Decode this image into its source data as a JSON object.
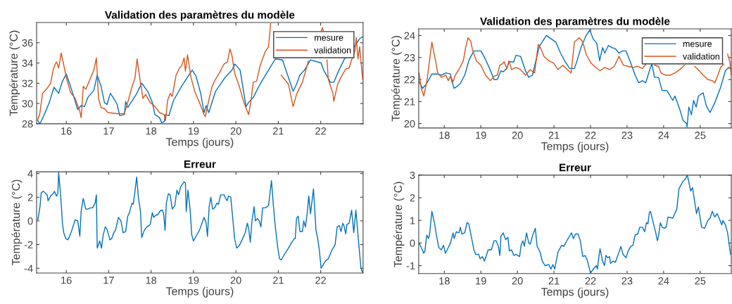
{
  "chart_data": [
    {
      "type": "line",
      "title": "Validation des paramètres du modèle",
      "xlabel": "Temps (jours)",
      "ylabel": "Température (°C)",
      "xlim": [
        15.3,
        23
      ],
      "xticks": [
        16,
        17,
        18,
        19,
        20,
        21,
        22
      ],
      "ylim": [
        28,
        38
      ],
      "yticks": [
        28,
        30,
        32,
        34,
        36
      ],
      "legend": "top right",
      "series": [
        {
          "name": "mesure",
          "color": "#0072bd",
          "x": [
            15.33,
            15.38,
            15.46,
            15.6,
            15.71,
            15.82,
            15.91,
            16.0,
            16.1,
            16.27,
            16.35,
            16.43,
            16.51,
            16.65,
            16.73,
            16.82,
            16.9,
            16.96,
            17.04,
            17.12,
            17.2,
            17.26,
            17.37,
            17.4,
            17.45,
            17.65,
            17.78,
            17.92,
            18.03,
            18.09,
            18.2,
            18.25,
            18.31,
            18.34,
            18.42,
            18.53,
            18.72,
            18.86,
            18.97,
            19.06,
            19.17,
            19.25,
            19.3,
            19.36,
            19.52,
            19.75,
            19.91,
            19.97,
            20.02,
            20.1,
            20.24,
            20.3,
            20.41,
            20.57,
            20.8,
            20.93,
            21.1,
            21.35,
            21.43,
            21.51,
            21.62,
            21.76,
            22.01,
            22.07,
            22.23,
            22.31,
            22.4,
            22.56,
            22.81,
            22.84,
            22.92,
            22.99
          ],
          "values": [
            28.3,
            28.0,
            28.7,
            30.1,
            31.6,
            31.0,
            32.2,
            32.9,
            31.7,
            29.4,
            29.8,
            29.7,
            30.6,
            31.3,
            32.8,
            31.7,
            30.1,
            29.9,
            31.0,
            30.5,
            29.9,
            28.8,
            28.9,
            30.2,
            29.6,
            30.9,
            32.0,
            31.2,
            30.1,
            28.9,
            28.6,
            28.1,
            28.2,
            28.9,
            28.8,
            30.3,
            31.7,
            32.6,
            33.3,
            32.7,
            31.0,
            29.1,
            29.8,
            29.1,
            31.2,
            32.6,
            33.3,
            33.9,
            33.7,
            33.3,
            29.7,
            30.1,
            30.6,
            31.9,
            33.5,
            34.4,
            34.3,
            31.2,
            31.9,
            32.8,
            33.3,
            34.3,
            34.0,
            33.3,
            32.1,
            32.1,
            33.0,
            34.4,
            35.7,
            35.9,
            36.4,
            36.6
          ]
        },
        {
          "name": "validation",
          "color": "#d95319",
          "x": [
            15.33,
            15.38,
            15.44,
            15.55,
            15.63,
            15.69,
            15.75,
            15.77,
            15.82,
            15.85,
            15.88,
            15.93,
            16.01,
            16.1,
            16.21,
            16.32,
            16.35,
            16.38,
            16.4,
            16.46,
            16.54,
            16.65,
            16.71,
            16.73,
            16.76,
            16.82,
            16.9,
            16.98,
            17.2,
            17.37,
            17.45,
            17.54,
            17.62,
            17.67,
            17.73,
            17.81,
            17.87,
            17.98,
            18.09,
            18.2,
            18.31,
            18.34,
            18.39,
            18.45,
            18.5,
            18.59,
            18.67,
            18.72,
            18.78,
            18.81,
            18.86,
            18.94,
            19.03,
            19.14,
            19.25,
            19.28,
            19.36,
            19.44,
            19.52,
            19.61,
            19.72,
            19.8,
            19.86,
            19.91,
            19.97,
            20.08,
            20.19,
            20.3,
            20.35,
            20.41,
            20.49,
            20.57,
            20.69,
            20.77,
            20.82,
            20.85,
            21.07,
            21.24,
            21.35,
            21.43,
            21.57,
            21.71,
            21.9,
            22.02,
            22.04,
            22.06,
            22.1,
            22.15,
            22.18,
            22.29,
            22.31,
            22.4,
            22.48,
            22.59,
            22.67,
            22.73,
            22.81,
            22.84,
            22.88,
            22.92,
            22.99
          ],
          "values": [
            28.4,
            29.1,
            31.0,
            31.5,
            32.0,
            33.3,
            34.0,
            34.1,
            33.5,
            34.2,
            35.0,
            34.0,
            32.4,
            31.1,
            30.5,
            29.2,
            28.6,
            30.3,
            31.7,
            31.4,
            32.2,
            33.3,
            34.5,
            33.0,
            30.5,
            29.6,
            29.5,
            29.1,
            29.0,
            29.0,
            30.1,
            31.5,
            32.5,
            34.4,
            32.6,
            30.5,
            30.9,
            30.1,
            29.7,
            29.1,
            28.9,
            28.3,
            30.3,
            31.0,
            30.7,
            32.8,
            33.5,
            33.7,
            34.5,
            33.2,
            34.8,
            32.6,
            31.2,
            30.1,
            28.9,
            28.7,
            30.3,
            31.7,
            32.4,
            33.0,
            33.9,
            34.1,
            35.4,
            34.7,
            33.0,
            31.7,
            30.1,
            28.9,
            30.1,
            32.1,
            32.2,
            33.7,
            35.1,
            35.6,
            37.9,
            null,
            32.8,
            31.9,
            29.7,
            30.9,
            32.1,
            34.2,
            null,
            37.2,
            37.5,
            37.2,
            null,
            34.3,
            32.4,
            31.0,
            30.2,
            31.9,
            32.6,
            33.4,
            33.5,
            34.3,
            35.2,
            36.5,
            34.4,
            35.6,
            32.4
          ]
        }
      ]
    },
    {
      "type": "line",
      "title": "Validation des paramètres du modèle",
      "xlabel": "Temps (jours)",
      "ylabel": "Température (°C)",
      "xlim": [
        17.3,
        25.85
      ],
      "xticks": [
        18,
        19,
        20,
        21,
        22,
        23,
        24,
        25
      ],
      "ylim": [
        19.8,
        24.3
      ],
      "yticks": [
        20,
        21,
        22,
        23,
        24
      ],
      "legend": "top right",
      "series": [
        {
          "name": "mesure",
          "color": "#0072bd",
          "x": [
            17.31,
            17.41,
            17.53,
            17.66,
            17.79,
            17.92,
            18.04,
            18.17,
            18.2,
            18.27,
            18.36,
            18.43,
            18.56,
            18.68,
            18.81,
            19.0,
            19.07,
            19.13,
            19.2,
            19.29,
            19.36,
            19.45,
            19.55,
            19.61,
            19.71,
            19.77,
            19.9,
            19.96,
            20.09,
            20.22,
            20.31,
            20.41,
            20.6,
            20.79,
            20.92,
            21.05,
            21.18,
            21.31,
            21.43,
            21.56,
            21.63,
            21.75,
            21.88,
            21.98,
            22.07,
            22.17,
            22.25,
            22.33,
            22.39,
            22.49,
            22.58,
            22.68,
            22.78,
            22.87,
            22.97,
            23.1,
            23.22,
            23.32,
            23.42,
            23.51,
            23.64,
            23.68,
            23.75,
            23.86,
            23.96,
            24.09,
            24.18,
            24.25,
            24.31,
            24.44,
            24.53,
            24.63,
            24.64,
            24.69,
            24.76,
            24.82,
            24.89,
            24.95,
            25.08,
            25.17,
            25.27,
            25.4,
            25.56,
            25.69,
            25.78,
            25.85
          ],
          "values": [
            21.9,
            21.6,
            21.85,
            22.25,
            22.25,
            22.2,
            22.3,
            22.25,
            21.95,
            21.6,
            21.7,
            21.8,
            22.2,
            22.9,
            23.3,
            23.3,
            23.1,
            22.9,
            22.65,
            22.3,
            22.0,
            22.0,
            22.4,
            22.35,
            22.5,
            22.8,
            22.8,
            23.1,
            23.05,
            22.4,
            22.1,
            22.2,
            23.5,
            24.0,
            23.85,
            23.7,
            23.2,
            22.8,
            22.5,
            22.5,
            22.85,
            23.5,
            24.0,
            24.25,
            23.85,
            23.65,
            22.85,
            23.45,
            23.2,
            23.55,
            23.45,
            23.4,
            23.2,
            23.3,
            23.3,
            22.75,
            22.2,
            21.85,
            21.95,
            21.85,
            22.55,
            22.7,
            22.1,
            22.1,
            21.5,
            21.5,
            21.25,
            21.05,
            21.25,
            20.65,
            20.15,
            20.0,
            19.85,
            20.75,
            20.4,
            21.05,
            20.75,
            21.25,
            21.4,
            20.8,
            20.5,
            20.95,
            21.65,
            22.4,
            22.55,
            22.45
          ]
        },
        {
          "name": "validation",
          "color": "#d95319",
          "x": [
            17.31,
            17.37,
            17.44,
            17.53,
            17.6,
            17.66,
            17.76,
            17.82,
            17.92,
            18.04,
            18.11,
            18.17,
            18.24,
            18.3,
            18.43,
            18.52,
            18.59,
            18.65,
            18.72,
            18.78,
            18.88,
            19.0,
            19.13,
            19.26,
            19.36,
            19.45,
            19.52,
            19.58,
            19.64,
            19.71,
            19.77,
            19.84,
            19.96,
            20.09,
            20.22,
            20.35,
            20.47,
            20.57,
            20.63,
            20.73,
            20.86,
            20.99,
            21.11,
            21.24,
            21.37,
            21.47,
            21.56,
            21.69,
            21.79,
            21.88,
            22.01,
            22.14,
            22.26,
            22.39,
            22.52,
            22.65,
            22.78,
            22.9,
            23.03,
            23.16,
            23.29,
            23.42,
            23.54,
            23.6,
            23.75,
            23.86,
            23.93,
            24.05,
            24.18,
            24.31,
            24.44,
            24.57,
            24.6,
            24.85,
            24.95,
            25.08,
            25.21,
            25.33,
            25.4,
            25.46,
            25.56,
            25.65,
            25.68,
            25.75,
            25.81,
            25.85
          ],
          "values": [
            22.3,
            21.6,
            21.25,
            22.0,
            22.9,
            23.7,
            22.85,
            22.3,
            22.1,
            22.2,
            21.95,
            22.15,
            21.9,
            22.2,
            22.55,
            22.85,
            23.5,
            23.9,
            23.75,
            23.3,
            22.85,
            22.65,
            22.2,
            21.95,
            22.15,
            22.2,
            22.65,
            22.7,
            22.8,
            22.5,
            22.85,
            22.45,
            22.55,
            22.45,
            22.2,
            22.45,
            22.3,
            23.6,
            23.45,
            23.05,
            22.85,
            22.75,
            22.45,
            22.65,
            22.45,
            22.3,
            23.7,
            23.9,
            23.7,
            23.15,
            22.75,
            22.55,
            22.4,
            22.55,
            22.45,
            22.6,
            23.05,
            22.65,
            22.6,
            22.55,
            22.6,
            22.5,
            22.75,
            null,
            22.65,
            22.6,
            22.3,
            22.2,
            22.2,
            22.3,
            22.45,
            22.65,
            null,
            22.6,
            22.45,
            22.2,
            22.0,
            21.95,
            21.85,
            22.1,
            22.55,
            22.7,
            null,
            23.15,
            22.8,
            22.2
          ]
        }
      ]
    },
    {
      "type": "line",
      "title": "Erreur",
      "xlabel": "Temps (jours)",
      "ylabel": "Température (°C)",
      "xlim": [
        15.3,
        23
      ],
      "xticks": [
        16,
        17,
        18,
        19,
        20,
        21,
        22
      ],
      "ylim": [
        -4.4,
        4.15
      ],
      "yticks": [
        -4,
        -2,
        0,
        2,
        4
      ],
      "series": [
        {
          "color": "#0072bd",
          "x": [
            15.33,
            15.38,
            15.41,
            15.46,
            15.55,
            15.57,
            15.63,
            15.69,
            15.72,
            15.77,
            15.8,
            15.82,
            15.87,
            15.91,
            15.94,
            15.99,
            16.04,
            16.1,
            16.13,
            16.21,
            16.27,
            16.32,
            16.35,
            16.4,
            16.46,
            16.51,
            16.57,
            16.62,
            16.68,
            16.71,
            16.73,
            16.79,
            16.83,
            16.87,
            16.92,
            16.96,
            17.03,
            17.07,
            17.12,
            17.16,
            17.23,
            17.29,
            17.34,
            17.4,
            17.45,
            17.49,
            17.55,
            17.58,
            17.62,
            17.66,
            17.7,
            17.75,
            17.78,
            17.84,
            17.9,
            17.95,
            17.98,
            18.03,
            18.06,
            18.12,
            18.15,
            18.23,
            18.27,
            18.3,
            18.33,
            18.36,
            18.41,
            18.45,
            18.5,
            18.56,
            18.61,
            18.65,
            18.7,
            18.78,
            18.81,
            18.83,
            18.87,
            18.92,
            18.96,
            19.0,
            19.06,
            19.14,
            19.25,
            19.3,
            19.33,
            19.37,
            19.41,
            19.45,
            19.5,
            19.55,
            19.59,
            19.64,
            19.72,
            19.79,
            19.83,
            19.88,
            19.97,
            20.02,
            20.08,
            20.16,
            20.22,
            20.27,
            20.3,
            20.34,
            20.38,
            20.43,
            20.46,
            20.51,
            20.55,
            20.59,
            20.63,
            20.69,
            20.74,
            20.77,
            20.81,
            20.84,
            20.88,
            20.93,
            20.99,
            21.03,
            21.07,
            21.15,
            21.24,
            21.32,
            21.38,
            21.4,
            21.43,
            21.47,
            21.51,
            21.57,
            21.6,
            21.64,
            21.68,
            21.72,
            21.76,
            21.79,
            21.83,
            21.89,
            21.93,
            21.97,
            22.01,
            22.06,
            22.11,
            22.18,
            22.26,
            22.31,
            22.34,
            22.39,
            22.44,
            22.48,
            22.52,
            22.55,
            22.59,
            22.62,
            22.67,
            22.73,
            22.78,
            22.83,
            22.9,
            22.95,
            22.98
          ],
          "values": [
            0.1,
            1.2,
            2.4,
            2.5,
            2.2,
            1.7,
            2.1,
            2.3,
            2.5,
            2.1,
            2.3,
            4.1,
            2.0,
            -0.2,
            -1.0,
            -1.5,
            -1.6,
            -1.1,
            -0.8,
            0.1,
            0.0,
            -1.3,
            0.8,
            1.9,
            1.0,
            1.0,
            1.1,
            1.1,
            1.5,
            2.2,
            -2.3,
            -1.7,
            -2.3,
            -1.2,
            -0.5,
            -0.7,
            -1.6,
            -1.5,
            -1.0,
            -0.8,
            0.3,
            0.0,
            -1.0,
            -0.9,
            0.4,
            0.7,
            1.5,
            1.4,
            2.5,
            3.7,
            2.0,
            0.8,
            -1.4,
            -0.8,
            -0.5,
            -0.4,
            -0.3,
            0.7,
            0.3,
            0.5,
            0.5,
            0.9,
            0.9,
            0.5,
            -0.8,
            1.5,
            2.3,
            2.2,
            1.0,
            1.3,
            2.6,
            2.2,
            2.9,
            3.3,
            3.2,
            0.8,
            2.6,
            1.0,
            -1.2,
            -1.7,
            -1.3,
            -0.8,
            0.3,
            -0.2,
            -1.3,
            1.2,
            2.0,
            1.0,
            1.1,
            1.5,
            1.4,
            2.2,
            2.2,
            1.7,
            2.1,
            2.0,
            -1.5,
            -2.3,
            -2.1,
            -1.5,
            -1.0,
            -0.2,
            -0.6,
            -1.8,
            0.0,
            1.2,
            0.0,
            0.2,
            0.0,
            -0.5,
            1.1,
            1.1,
            1.2,
            1.3,
            2.5,
            3.4,
            1.5,
            -0.5,
            -2.3,
            -3.2,
            -3.3,
            -2.8,
            -2.3,
            -1.8,
            -1.5,
            -1.5,
            0.2,
            0.4,
            -0.9,
            -0.9,
            0.0,
            -0.5,
            0.6,
            2.1,
            0.6,
            1.5,
            2.7,
            -0.8,
            -1.5,
            -2.5,
            -4.0,
            -3.7,
            -3.4,
            -3.2,
            -2.5,
            -2.2,
            -2.0,
            -0.5,
            -0.4,
            -0.9,
            -0.2,
            -0.4,
            -1.1,
            -0.3,
            -0.2,
            0.9,
            -1.0,
            0.9,
            -2.0,
            -4.0,
            -4.3
          ]
        }
      ]
    },
    {
      "type": "line",
      "title": "Erreur",
      "xlabel": "Temps (jours)",
      "ylabel": "Température (°C)",
      "xlim": [
        17.3,
        25.85
      ],
      "xticks": [
        18,
        19,
        20,
        21,
        22,
        23,
        24,
        25
      ],
      "ylim": [
        -1.35,
        3.0
      ],
      "yticks": [
        -1,
        0,
        1,
        2,
        3
      ],
      "series": [
        {
          "color": "#0072bd",
          "x": [
            17.31,
            17.37,
            17.44,
            17.47,
            17.52,
            17.57,
            17.6,
            17.66,
            17.73,
            17.79,
            17.85,
            17.92,
            17.98,
            18.03,
            18.11,
            18.17,
            18.24,
            18.27,
            18.33,
            18.4,
            18.44,
            18.48,
            18.56,
            18.62,
            18.67,
            18.75,
            18.81,
            18.86,
            18.94,
            18.98,
            19.04,
            19.1,
            19.2,
            19.29,
            19.36,
            19.42,
            19.48,
            19.52,
            19.55,
            19.61,
            19.68,
            19.74,
            19.78,
            19.84,
            19.9,
            19.96,
            20.06,
            20.1,
            20.15,
            20.19,
            20.25,
            20.31,
            20.35,
            20.42,
            20.49,
            20.54,
            20.62,
            20.68,
            20.76,
            20.86,
            20.92,
            20.97,
            21.02,
            21.11,
            21.21,
            21.27,
            21.37,
            21.48,
            21.53,
            21.59,
            21.66,
            21.72,
            21.79,
            21.85,
            21.91,
            22.0,
            22.1,
            22.16,
            22.19,
            22.23,
            22.26,
            22.33,
            22.38,
            22.42,
            22.47,
            22.52,
            22.55,
            22.62,
            22.68,
            22.78,
            22.83,
            22.89,
            22.97,
            23.03,
            23.1,
            23.16,
            23.22,
            23.29,
            23.35,
            23.42,
            23.48,
            23.53,
            23.57,
            23.61,
            23.64,
            23.7,
            23.77,
            23.83,
            23.86,
            23.91,
            23.96,
            24.02,
            24.07,
            24.12,
            24.25,
            24.36,
            24.42,
            24.52,
            24.6,
            24.65,
            24.74,
            24.79,
            24.9,
            24.95,
            25.04,
            25.12,
            25.21,
            25.27,
            25.33,
            25.4,
            25.46,
            25.53,
            25.59,
            25.62,
            25.69,
            25.75,
            25.83
          ],
          "values": [
            0.0,
            -0.2,
            -0.45,
            -0.35,
            0.35,
            0.2,
            0.4,
            1.4,
            0.9,
            0.3,
            -0.2,
            -0.3,
            -0.1,
            -0.45,
            -0.2,
            0.0,
            0.45,
            0.2,
            0.5,
            0.45,
            0.7,
            0.4,
            0.45,
            0.9,
            0.85,
            0.2,
            -0.3,
            -0.5,
            -0.5,
            -0.7,
            -0.6,
            -0.8,
            -0.3,
            -0.3,
            0.1,
            0.1,
            -0.15,
            -0.55,
            0.3,
            0.45,
            0.15,
            0.25,
            -0.35,
            -0.3,
            -0.55,
            -0.5,
            -0.6,
            -0.1,
            0.1,
            -0.15,
            0.45,
            0.0,
            -0.05,
            0.35,
            0.65,
            -0.15,
            -0.4,
            -0.8,
            -1.0,
            -0.95,
            -1.15,
            -0.95,
            -1.15,
            -0.4,
            -0.1,
            -0.15,
            0.15,
            0.45,
            0.2,
            0.4,
            0.4,
            0.1,
            -0.6,
            -0.55,
            -0.75,
            -1.33,
            -1.1,
            -1.0,
            -1.15,
            -0.6,
            -0.25,
            -0.8,
            -1.0,
            -0.55,
            -0.65,
            -0.6,
            -0.9,
            -0.8,
            -0.85,
            -0.4,
            -0.15,
            -0.5,
            -0.65,
            -0.35,
            -0.15,
            -0.1,
            0.35,
            0.4,
            0.7,
            0.7,
            0.5,
            0.9,
            0.85,
            1.35,
            1.4,
            1.0,
            0.55,
            0.1,
            0.3,
            0.9,
            0.7,
            0.65,
            0.7,
            1.15,
            1.1,
            1.5,
            2.4,
            2.7,
            2.85,
            3.0,
            2.3,
            2.45,
            1.3,
            1.6,
            0.7,
            0.65,
            1.0,
            1.1,
            1.4,
            1.15,
            1.3,
            1.05,
            0.8,
            1.0,
            0.8,
            0.45,
            -0.5
          ]
        }
      ]
    }
  ]
}
